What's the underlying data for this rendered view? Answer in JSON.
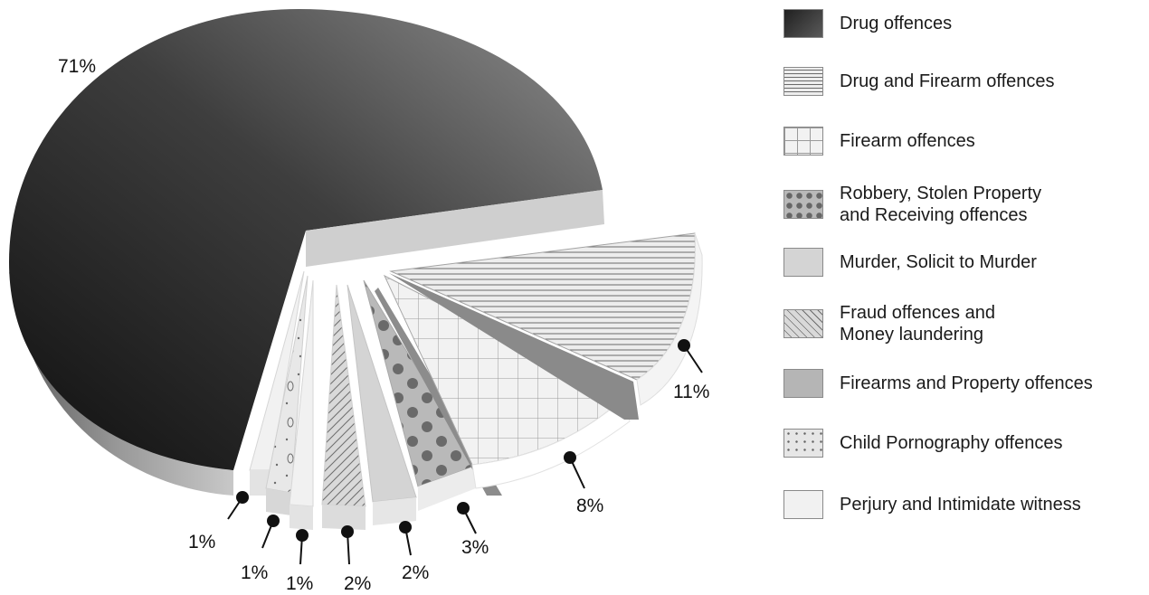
{
  "chart_data": {
    "type": "pie",
    "title": "",
    "series": [
      {
        "label": "Drug offences",
        "value": 71,
        "value_label": "71%"
      },
      {
        "label": "Drug and Firearm offences",
        "value": 11,
        "value_label": "11%"
      },
      {
        "label": "Firearm offences",
        "value": 8,
        "value_label": "8%"
      },
      {
        "label": "Firearms and Property offences",
        "value": 1,
        "value_label": ""
      },
      {
        "label": "Robbery, Stolen Property\nand Receiving offences",
        "value": 3,
        "value_label": "3%"
      },
      {
        "label": "Murder, Solicit to Murder",
        "value": 2,
        "value_label": "2%"
      },
      {
        "label": "Fraud offences and\nMoney laundering",
        "value": 2,
        "value_label": "2%"
      },
      {
        "label": "Perjury and Intimidate witness",
        "value": 1,
        "value_label": "1%"
      },
      {
        "label": "Child Pornography offences",
        "value": 1,
        "value_label": "1%"
      },
      {
        "label": "Perjury and Intimidate witness",
        "value": 1,
        "value_label": "1%"
      }
    ],
    "legend": {
      "position": "right",
      "entries": [
        {
          "label": "Drug offences",
          "pattern": "dark-gradient",
          "color": "#3a3a3a"
        },
        {
          "label": "Drug and Firearm offences",
          "pattern": "horizontal-lines",
          "color": "#e8e8e8"
        },
        {
          "label": "Firearm offences",
          "pattern": "grid",
          "color": "#eeeeee"
        },
        {
          "label": "Robbery, Stolen Property\nand Receiving offences",
          "pattern": "dots",
          "color": "#b8b8b8"
        },
        {
          "label": "Murder, Solicit to Murder",
          "pattern": "solid",
          "color": "#d4d4d4"
        },
        {
          "label": "Fraud offences and\nMoney laundering",
          "pattern": "diagonal-lines",
          "color": "#d8d8d8"
        },
        {
          "label": "Firearms and Property offences",
          "pattern": "solid",
          "color": "#b5b5b5"
        },
        {
          "label": "Child Pornography offences",
          "pattern": "speckles",
          "color": "#e6e6e6"
        },
        {
          "label": "Perjury and Intimidate witness",
          "pattern": "solid",
          "color": "#f1f1f1"
        }
      ]
    }
  }
}
